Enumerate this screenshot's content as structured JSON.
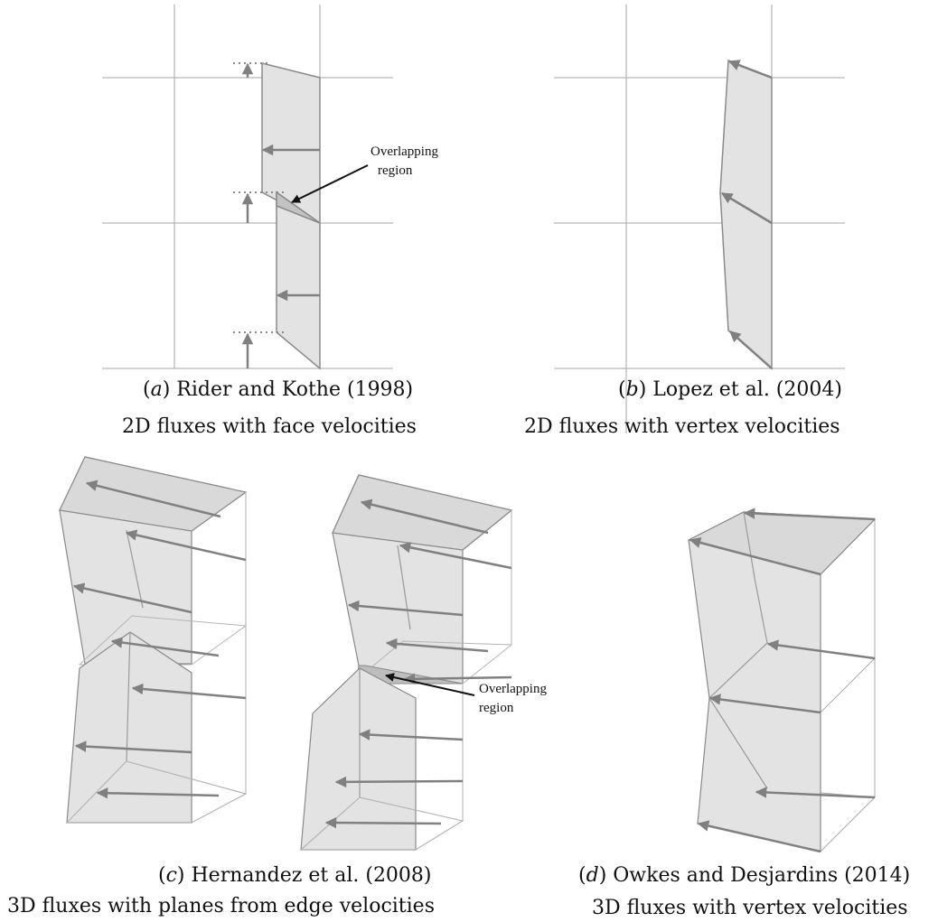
{
  "panels": {
    "a": {
      "letter": "a",
      "citation": "Rider and Kothe (1998)",
      "description": "2D fluxes with face velocities",
      "annotation_line1": "Overlapping",
      "annotation_line2": "region"
    },
    "b": {
      "letter": "b",
      "citation": "Lopez et al. (2004)",
      "description": "2D fluxes with vertex velocities"
    },
    "c": {
      "letter": "c",
      "citation": "Hernandez et al. (2008)",
      "description": "3D fluxes with planes from edge velocities",
      "annotation_line1": "Overlapping",
      "annotation_line2": "region"
    },
    "d": {
      "letter": "d",
      "citation": "Owkes and Desjardins (2014)",
      "description": "3D fluxes with vertex velocities"
    }
  },
  "colors": {
    "grid": "#a6a6a6",
    "fill": "#e3e3e3",
    "edge": "#8a8a8a",
    "arrow": "#808080",
    "overlap": "#c2c2c2"
  }
}
